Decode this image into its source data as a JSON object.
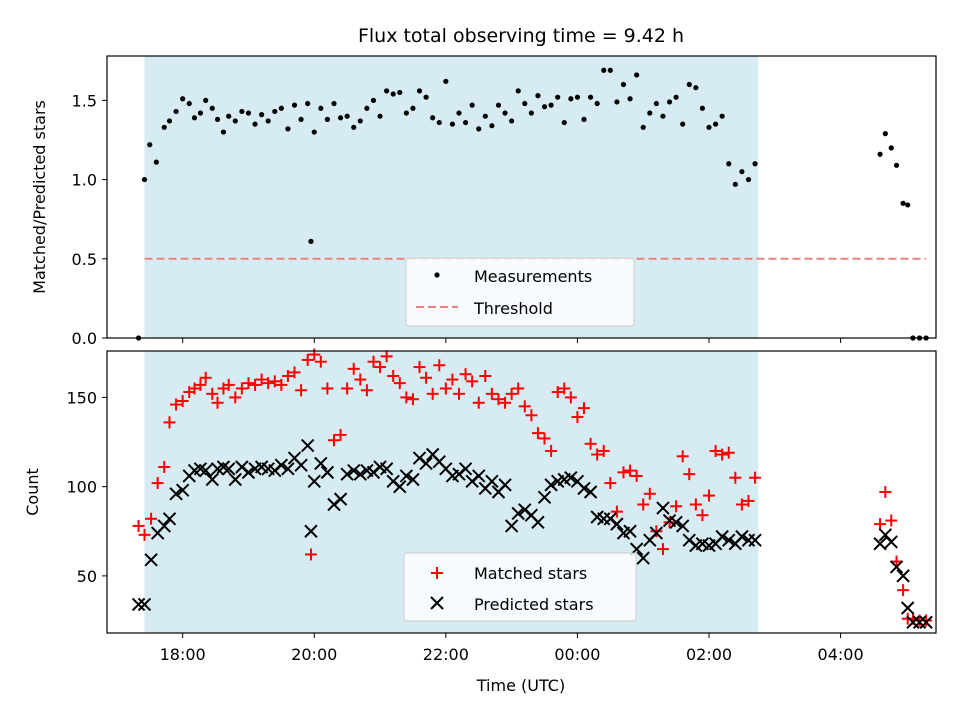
{
  "chart_data": [
    {
      "type": "scatter",
      "title": "Flux total observing time = 9.42 h",
      "xlabel": "",
      "ylabel": "Matched/Predicted stars",
      "ylim": [
        0,
        1.78
      ],
      "yticks": [
        0.0,
        0.5,
        1.0,
        1.5
      ],
      "ytick_labels": [
        "0.0",
        "0.5",
        "1.0",
        "1.5"
      ],
      "xlim_hours": [
        16.85,
        29.45
      ],
      "shaded_span_hours": [
        17.42,
        26.75
      ],
      "shaded_color": "#add8e6",
      "grid": false,
      "legend": {
        "placement": "lower-center",
        "entries": [
          "Measurements",
          "Threshold"
        ]
      },
      "threshold": {
        "name": "Threshold",
        "value": 0.5,
        "x_range_hours": [
          17.42,
          29.3
        ],
        "color": "#f08080",
        "style": "dashed"
      },
      "series": [
        {
          "name": "Measurements",
          "color": "#000000",
          "marker": "dot",
          "x_hours": [
            17.33,
            17.42,
            17.5,
            17.6,
            17.72,
            17.8,
            17.9,
            18.0,
            18.1,
            18.18,
            18.27,
            18.35,
            18.45,
            18.53,
            18.62,
            18.7,
            18.8,
            18.9,
            19.0,
            19.1,
            19.2,
            19.3,
            19.4,
            19.5,
            19.6,
            19.7,
            19.8,
            19.9,
            20.0,
            20.1,
            20.2,
            20.3,
            20.4,
            20.5,
            20.6,
            20.7,
            20.8,
            20.9,
            21.0,
            21.1,
            21.2,
            21.3,
            21.4,
            21.5,
            21.6,
            21.7,
            21.8,
            21.9,
            22.0,
            22.1,
            22.2,
            22.3,
            22.4,
            22.5,
            22.6,
            22.7,
            22.8,
            22.9,
            23.0,
            23.1,
            23.2,
            23.3,
            23.4,
            23.5,
            23.6,
            23.7,
            23.8,
            23.9,
            24.0,
            24.1,
            24.2,
            24.3,
            24.4,
            24.5,
            24.6,
            24.7,
            24.8,
            24.9,
            25.0,
            25.1,
            25.2,
            25.3,
            25.4,
            25.5,
            25.6,
            25.7,
            25.8,
            25.9,
            26.0,
            26.1,
            26.2,
            26.3,
            26.4,
            26.5,
            26.6,
            26.7,
            19.95,
            28.6,
            28.68,
            28.77,
            28.85,
            28.95,
            29.02,
            29.1,
            29.2,
            29.3
          ],
          "y": [
            0.0,
            1.0,
            1.22,
            1.11,
            1.33,
            1.37,
            1.43,
            1.51,
            1.48,
            1.39,
            1.42,
            1.5,
            1.45,
            1.38,
            1.3,
            1.4,
            1.37,
            1.43,
            1.42,
            1.35,
            1.41,
            1.37,
            1.43,
            1.45,
            1.32,
            1.47,
            1.38,
            1.48,
            1.3,
            1.45,
            1.38,
            1.48,
            1.39,
            1.4,
            1.33,
            1.37,
            1.45,
            1.5,
            1.4,
            1.56,
            1.54,
            1.55,
            1.42,
            1.45,
            1.56,
            1.52,
            1.39,
            1.36,
            1.62,
            1.35,
            1.42,
            1.36,
            1.47,
            1.32,
            1.4,
            1.34,
            1.47,
            1.42,
            1.37,
            1.56,
            1.48,
            1.42,
            1.53,
            1.46,
            1.47,
            1.52,
            1.36,
            1.51,
            1.52,
            1.38,
            1.52,
            1.48,
            1.69,
            1.69,
            1.49,
            1.6,
            1.51,
            1.66,
            1.33,
            1.42,
            1.48,
            1.4,
            1.49,
            1.52,
            1.35,
            1.6,
            1.58,
            1.45,
            1.33,
            1.35,
            1.4,
            1.1,
            0.97,
            1.05,
            1.0,
            1.1,
            0.61,
            1.16,
            1.29,
            1.2,
            1.09,
            0.85,
            0.84,
            0.0,
            0.0,
            0.0
          ]
        }
      ]
    },
    {
      "type": "scatter",
      "xlabel": "Time (UTC)",
      "ylabel": "Count",
      "ylim": [
        18,
        176
      ],
      "yticks": [
        50,
        100,
        150
      ],
      "ytick_labels": [
        "50",
        "100",
        "150"
      ],
      "xticks_hours": [
        18,
        20,
        22,
        24,
        26,
        28
      ],
      "xtick_labels": [
        "18:00",
        "20:00",
        "22:00",
        "00:00",
        "02:00",
        "04:00"
      ],
      "xlim_hours": [
        16.85,
        29.45
      ],
      "shaded_span_hours": [
        17.42,
        26.75
      ],
      "shaded_color": "#add8e6",
      "grid": false,
      "legend": {
        "placement": "lower-center",
        "entries": [
          "Matched stars",
          "Predicted stars"
        ]
      },
      "series": [
        {
          "name": "Matched stars",
          "color": "#ff0000",
          "marker": "plus",
          "x_hours": [
            17.33,
            17.42,
            17.52,
            17.62,
            17.72,
            17.8,
            17.9,
            18.0,
            18.1,
            18.18,
            18.27,
            18.35,
            18.45,
            18.53,
            18.62,
            18.7,
            18.8,
            18.9,
            19.0,
            19.1,
            19.2,
            19.3,
            19.4,
            19.5,
            19.6,
            19.7,
            19.8,
            19.9,
            20.0,
            20.1,
            20.2,
            20.3,
            20.4,
            20.5,
            20.6,
            20.7,
            20.8,
            20.9,
            21.0,
            21.1,
            21.2,
            21.3,
            21.4,
            21.5,
            21.6,
            21.7,
            21.8,
            21.9,
            22.0,
            22.1,
            22.2,
            22.3,
            22.4,
            22.5,
            22.6,
            22.7,
            22.8,
            22.9,
            23.0,
            23.1,
            23.2,
            23.3,
            23.4,
            23.5,
            23.6,
            23.7,
            23.8,
            23.9,
            24.0,
            24.1,
            24.2,
            24.3,
            24.4,
            24.5,
            24.6,
            24.7,
            24.8,
            24.9,
            25.0,
            25.1,
            25.2,
            25.3,
            25.4,
            25.5,
            25.6,
            25.7,
            25.8,
            25.9,
            26.0,
            26.1,
            26.2,
            26.3,
            26.4,
            26.5,
            26.6,
            26.7,
            19.95,
            28.6,
            28.68,
            28.77,
            28.85,
            28.95,
            29.02,
            29.1,
            29.2,
            29.3
          ],
          "y": [
            78,
            73,
            82,
            102,
            111,
            136,
            146,
            148,
            153,
            155,
            157,
            161,
            152,
            147,
            155,
            157,
            150,
            155,
            158,
            157,
            160,
            158,
            159,
            157,
            162,
            164,
            154,
            171,
            174,
            170,
            155,
            126,
            129,
            155,
            166,
            160,
            154,
            170,
            167,
            173,
            162,
            158,
            150,
            149,
            167,
            161,
            152,
            168,
            155,
            160,
            152,
            163,
            159,
            147,
            162,
            152,
            149,
            147,
            152,
            155,
            145,
            140,
            130,
            127,
            120,
            153,
            155,
            150,
            139,
            144,
            124,
            118,
            120,
            102,
            86,
            108,
            109,
            106,
            90,
            96,
            75,
            65,
            80,
            89,
            117,
            107,
            90,
            84,
            95,
            120,
            118,
            119,
            105,
            90,
            92,
            105,
            62,
            79,
            97,
            81,
            58,
            42,
            26,
            26,
            25,
            25
          ]
        },
        {
          "name": "Predicted stars",
          "color": "#000000",
          "marker": "x",
          "x_hours": [
            17.33,
            17.42,
            17.52,
            17.62,
            17.72,
            17.8,
            17.9,
            18.0,
            18.1,
            18.18,
            18.27,
            18.35,
            18.45,
            18.53,
            18.62,
            18.7,
            18.8,
            18.9,
            19.0,
            19.1,
            19.2,
            19.3,
            19.4,
            19.5,
            19.6,
            19.7,
            19.8,
            19.9,
            20.0,
            20.1,
            20.2,
            20.3,
            20.4,
            20.5,
            20.6,
            20.7,
            20.8,
            20.9,
            21.0,
            21.1,
            21.2,
            21.3,
            21.4,
            21.5,
            21.6,
            21.7,
            21.8,
            21.9,
            22.0,
            22.1,
            22.2,
            22.3,
            22.4,
            22.5,
            22.6,
            22.7,
            22.8,
            22.9,
            23.0,
            23.1,
            23.2,
            23.3,
            23.4,
            23.5,
            23.6,
            23.7,
            23.8,
            23.9,
            24.0,
            24.1,
            24.2,
            24.3,
            24.4,
            24.5,
            24.6,
            24.7,
            24.8,
            24.9,
            25.0,
            25.1,
            25.2,
            25.3,
            25.4,
            25.5,
            25.6,
            25.7,
            25.8,
            25.9,
            26.0,
            26.1,
            26.2,
            26.3,
            26.4,
            26.5,
            26.6,
            26.7,
            19.95,
            28.6,
            28.68,
            28.77,
            28.85,
            28.95,
            29.02,
            29.1,
            29.2,
            29.3
          ],
          "y": [
            34,
            34,
            59,
            74,
            78,
            82,
            96,
            98,
            106,
            109,
            110,
            109,
            104,
            110,
            111,
            110,
            104,
            111,
            108,
            110,
            111,
            110,
            109,
            112,
            110,
            116,
            112,
            123,
            103,
            113,
            108,
            90,
            93,
            107,
            109,
            107,
            109,
            108,
            111,
            110,
            103,
            100,
            106,
            104,
            116,
            113,
            118,
            114,
            110,
            106,
            107,
            110,
            103,
            106,
            99,
            103,
            97,
            101,
            78,
            85,
            87,
            84,
            80,
            94,
            101,
            103,
            104,
            105,
            103,
            99,
            97,
            83,
            82,
            82,
            79,
            74,
            75,
            65,
            60,
            70,
            74,
            88,
            81,
            80,
            78,
            70,
            67,
            68,
            67,
            68,
            72,
            70,
            68,
            72,
            70,
            70,
            75,
            68,
            73,
            69,
            55,
            50,
            32,
            24,
            24,
            24
          ]
        }
      ]
    }
  ]
}
